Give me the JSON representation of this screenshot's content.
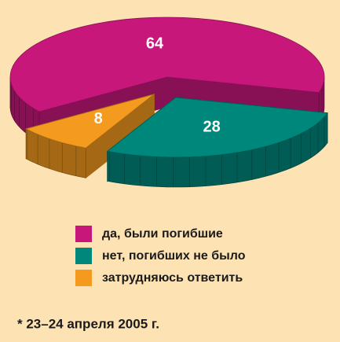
{
  "chart_data": {
    "type": "pie",
    "categories": [
      "да, были погибшие",
      "нет, погибших не было",
      "затрудняюсь ответить"
    ],
    "values": [
      64,
      28,
      8
    ],
    "colors": [
      "#c8177b",
      "#00877c",
      "#f39a1f"
    ],
    "note": "* 23–24 апреля 2005 г."
  }
}
